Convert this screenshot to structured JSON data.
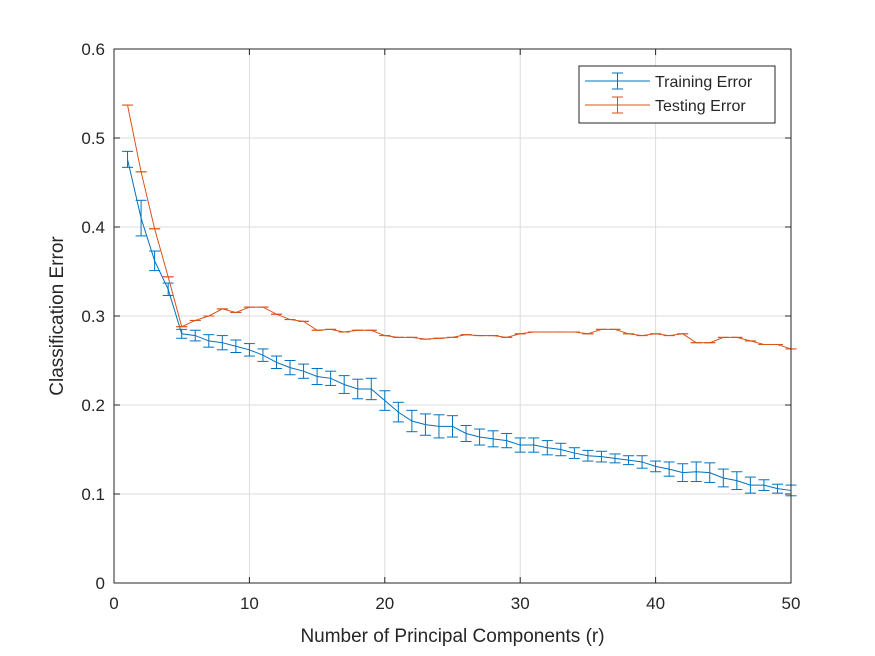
{
  "chart_data": {
    "type": "line",
    "title": "",
    "xlabel": "Number of Principal Components (r)",
    "ylabel": "Classification Error",
    "xlim": [
      0,
      50
    ],
    "ylim": [
      0,
      0.6
    ],
    "xticks": [
      0,
      10,
      20,
      30,
      40,
      50
    ],
    "xtick_labels": [
      "0",
      "10",
      "20",
      "30",
      "40",
      "50"
    ],
    "yticks": [
      0,
      0.1,
      0.2,
      0.3,
      0.4,
      0.5,
      0.6
    ],
    "ytick_labels": [
      "0",
      "0.1",
      "0.2",
      "0.3",
      "0.4",
      "0.5",
      "0.6"
    ],
    "grid": true,
    "legend_position": "top-right",
    "x": [
      1,
      2,
      3,
      4,
      5,
      6,
      7,
      8,
      9,
      10,
      11,
      12,
      13,
      14,
      15,
      16,
      17,
      18,
      19,
      20,
      21,
      22,
      23,
      24,
      25,
      26,
      27,
      28,
      29,
      30,
      31,
      32,
      33,
      34,
      35,
      36,
      37,
      38,
      39,
      40,
      41,
      42,
      43,
      44,
      45,
      46,
      47,
      48,
      49,
      50
    ],
    "series": [
      {
        "name": "Training Error",
        "color": "#0072BD",
        "values": [
          0.476,
          0.41,
          0.362,
          0.33,
          0.28,
          0.278,
          0.272,
          0.27,
          0.266,
          0.262,
          0.256,
          0.248,
          0.242,
          0.238,
          0.232,
          0.23,
          0.223,
          0.218,
          0.218,
          0.205,
          0.192,
          0.182,
          0.178,
          0.176,
          0.176,
          0.168,
          0.164,
          0.162,
          0.16,
          0.155,
          0.155,
          0.152,
          0.15,
          0.146,
          0.143,
          0.142,
          0.14,
          0.138,
          0.136,
          0.131,
          0.128,
          0.124,
          0.125,
          0.124,
          0.118,
          0.115,
          0.11,
          0.11,
          0.106,
          0.104
        ],
        "errors": [
          0.009,
          0.02,
          0.011,
          0.007,
          0.005,
          0.006,
          0.007,
          0.008,
          0.007,
          0.007,
          0.007,
          0.007,
          0.008,
          0.008,
          0.009,
          0.008,
          0.01,
          0.011,
          0.012,
          0.011,
          0.011,
          0.012,
          0.012,
          0.013,
          0.012,
          0.009,
          0.009,
          0.009,
          0.008,
          0.008,
          0.008,
          0.008,
          0.007,
          0.006,
          0.006,
          0.006,
          0.005,
          0.005,
          0.007,
          0.006,
          0.008,
          0.01,
          0.011,
          0.011,
          0.01,
          0.01,
          0.009,
          0.006,
          0.005,
          0.006
        ]
      },
      {
        "name": "Testing Error",
        "color": "#D95319",
        "values": [
          0.537,
          0.462,
          0.398,
          0.344,
          0.288,
          0.295,
          0.3,
          0.308,
          0.304,
          0.31,
          0.31,
          0.302,
          0.296,
          0.294,
          0.284,
          0.285,
          0.282,
          0.284,
          0.284,
          0.278,
          0.276,
          0.276,
          0.274,
          0.275,
          0.276,
          0.279,
          0.278,
          0.278,
          0.276,
          0.28,
          0.282,
          0.282,
          0.282,
          0.282,
          0.28,
          0.285,
          0.285,
          0.28,
          0.278,
          0.28,
          0.278,
          0.28,
          0.27,
          0.27,
          0.276,
          0.276,
          0.272,
          0.268,
          0.268,
          0.263
        ]
      }
    ]
  }
}
